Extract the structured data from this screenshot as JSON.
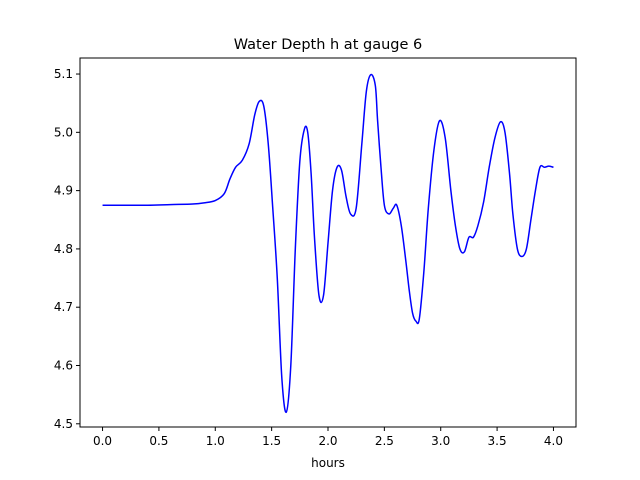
{
  "chart_data": {
    "type": "line",
    "title": "Water Depth h at gauge 6",
    "xlabel": "hours",
    "ylabel": "",
    "xlim": [
      -0.2,
      4.2
    ],
    "ylim": [
      4.4945,
      5.1275
    ],
    "xticks": [
      0.0,
      0.5,
      1.0,
      1.5,
      2.0,
      2.5,
      3.0,
      3.5,
      4.0
    ],
    "xtick_labels": [
      "0.0",
      "0.5",
      "1.0",
      "1.5",
      "2.0",
      "2.5",
      "3.0",
      "3.5",
      "4.0"
    ],
    "yticks": [
      4.5,
      4.6,
      4.7,
      4.8,
      4.9,
      5.0,
      5.1
    ],
    "ytick_labels": [
      "4.5",
      "4.6",
      "4.7",
      "4.8",
      "4.9",
      "5.0",
      "5.1"
    ],
    "grid": false,
    "legend": "none",
    "series": [
      {
        "color": "#0000ff",
        "x": [
          0.0,
          0.2,
          0.4,
          0.6,
          0.8,
          0.9,
          1.0,
          1.08,
          1.13,
          1.18,
          1.24,
          1.3,
          1.35,
          1.39,
          1.43,
          1.47,
          1.51,
          1.55,
          1.59,
          1.63,
          1.67,
          1.71,
          1.75,
          1.79,
          1.82,
          1.85,
          1.88,
          1.92,
          1.96,
          2.0,
          2.04,
          2.08,
          2.12,
          2.16,
          2.2,
          2.25,
          2.3,
          2.34,
          2.38,
          2.42,
          2.44,
          2.47,
          2.5,
          2.54,
          2.58,
          2.61,
          2.65,
          2.69,
          2.72,
          2.75,
          2.78,
          2.81,
          2.85,
          2.89,
          2.94,
          2.99,
          3.04,
          3.09,
          3.13,
          3.17,
          3.21,
          3.25,
          3.29,
          3.33,
          3.38,
          3.43,
          3.48,
          3.53,
          3.57,
          3.61,
          3.64,
          3.68,
          3.72,
          3.76,
          3.8,
          3.84,
          3.88,
          3.92,
          3.96,
          4.0
        ],
        "y": [
          4.875,
          4.875,
          4.875,
          4.876,
          4.877,
          4.879,
          4.883,
          4.895,
          4.92,
          4.94,
          4.952,
          4.98,
          5.03,
          5.053,
          5.045,
          4.98,
          4.87,
          4.75,
          4.58,
          4.52,
          4.6,
          4.8,
          4.95,
          5.005,
          5.0,
          4.93,
          4.82,
          4.72,
          4.72,
          4.81,
          4.9,
          4.94,
          4.935,
          4.89,
          4.86,
          4.87,
          4.98,
          5.07,
          5.099,
          5.08,
          5.02,
          4.94,
          4.875,
          4.86,
          4.87,
          4.875,
          4.84,
          4.78,
          4.73,
          4.69,
          4.676,
          4.68,
          4.76,
          4.87,
          4.97,
          5.02,
          4.99,
          4.9,
          4.84,
          4.8,
          4.795,
          4.82,
          4.82,
          4.84,
          4.88,
          4.94,
          4.99,
          5.018,
          5.0,
          4.93,
          4.86,
          4.8,
          4.787,
          4.8,
          4.85,
          4.9,
          4.94,
          4.94,
          4.942,
          4.94
        ]
      }
    ]
  }
}
